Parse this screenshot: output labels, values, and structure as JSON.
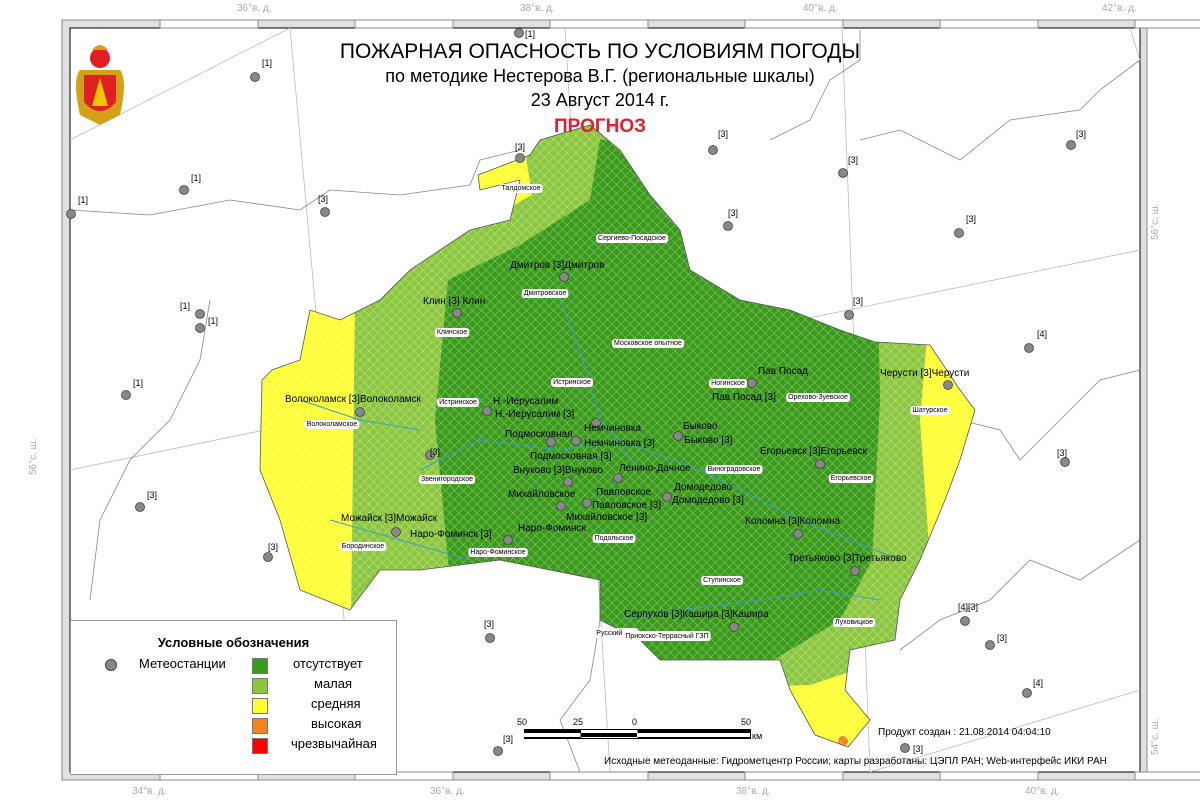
{
  "title": {
    "line1": "ПОЖАРНАЯ ОПАСНОСТЬ ПО УСЛОВИЯМ ПОГОДЫ",
    "line2": "по методике Нестерова В.Г. (региональные шкалы)",
    "line3": "23 Август 2014 г.",
    "forecast": "ПРОГНОЗ"
  },
  "coords": {
    "top": [
      "36°в. д.",
      "38°в. д.",
      "40°в. д.",
      "42°в. д."
    ],
    "bottom": [
      "34°в. д.",
      "36°в. д.",
      "38°в. д.",
      "40°в. д."
    ],
    "left": "56°с. ш.",
    "right": [
      "56°с. ш.",
      "54°с. ш."
    ]
  },
  "legend": {
    "title": "Условные обозначения",
    "stations": "Метеостанции",
    "classes": [
      {
        "label": "отсутствует",
        "color": "#3a9a1a"
      },
      {
        "label": "малая",
        "color": "#8cc63f"
      },
      {
        "label": "средняя",
        "color": "#ffff33"
      },
      {
        "label": "высокая",
        "color": "#f58220"
      },
      {
        "label": "чрезвычайная",
        "color": "#ff0000"
      }
    ]
  },
  "scale": {
    "labels": [
      "50",
      "25",
      "0",
      "50"
    ],
    "unit": "км"
  },
  "created": "Продукт создан : 21.08.2014 04:04:10",
  "source": "Исходные метеоданные: Гидрометцентр России; карты разработаны: ЦЭПЛ РАН; Web-интерфейс ИКИ РАН",
  "stations": [
    "Дмитров [3]Дмитров",
    "Клин [3] Клин",
    "Волоколамск [3]Волоколамск",
    "Н.-Иерусалим",
    "Н.-Иерусалим [3]",
    "Немчиновка",
    "Немчиновка [3]",
    "Подмосковная",
    "Подмосковная [3]",
    "Внуково [3]Внуково",
    "Ленино-Дачное",
    "Павловское",
    "Павловское [3]",
    "Михайловское",
    "Михайловское [3]",
    "Можайск [3]Можайск",
    "Наро-Фоминск [3]",
    "Наро-Фоминск",
    "Быково",
    "Быково [3]",
    "Домодедово",
    "Домодедово [3]",
    "Пав.Посад",
    "Пав.Посад [3]",
    "Егорьевск [3]Егорьевск",
    "Коломна [3]Коломна",
    "Третьяково [3]Третьяково",
    "Черусти [3]Черусти",
    "Серпухов [3]Кашира [3]Кашира",
    "[1]",
    "[1]",
    "[1]",
    "[1]",
    "[1]",
    "[1]",
    "[1]",
    "[3]",
    "[3]",
    "[3]",
    "[3]",
    "[3]",
    "[3]",
    "[3]",
    "[3]",
    "[3]",
    "[3]",
    "[3]",
    "[3]",
    "[4]",
    "[4]",
    "[4][3]",
    "[3]",
    "[3]",
    "[3]",
    "[3]"
  ],
  "forestries": [
    "Талдомское",
    "Сергиево-Посадское",
    "Дмитровское",
    "Клинское",
    "Московское опытное",
    "Истринское",
    "Истринское",
    "Волоколамское",
    "Звенигородское",
    "Бородинское",
    "Наро-Фоминское",
    "Подольское",
    "Виноградовское",
    "Ногинское",
    "Орехово-Зуевское",
    "Шатурское",
    "Егорьевское",
    "Ступинское",
    "Русский лес",
    "Приокско-Террасный ГЗП",
    "Луховицкое"
  ]
}
